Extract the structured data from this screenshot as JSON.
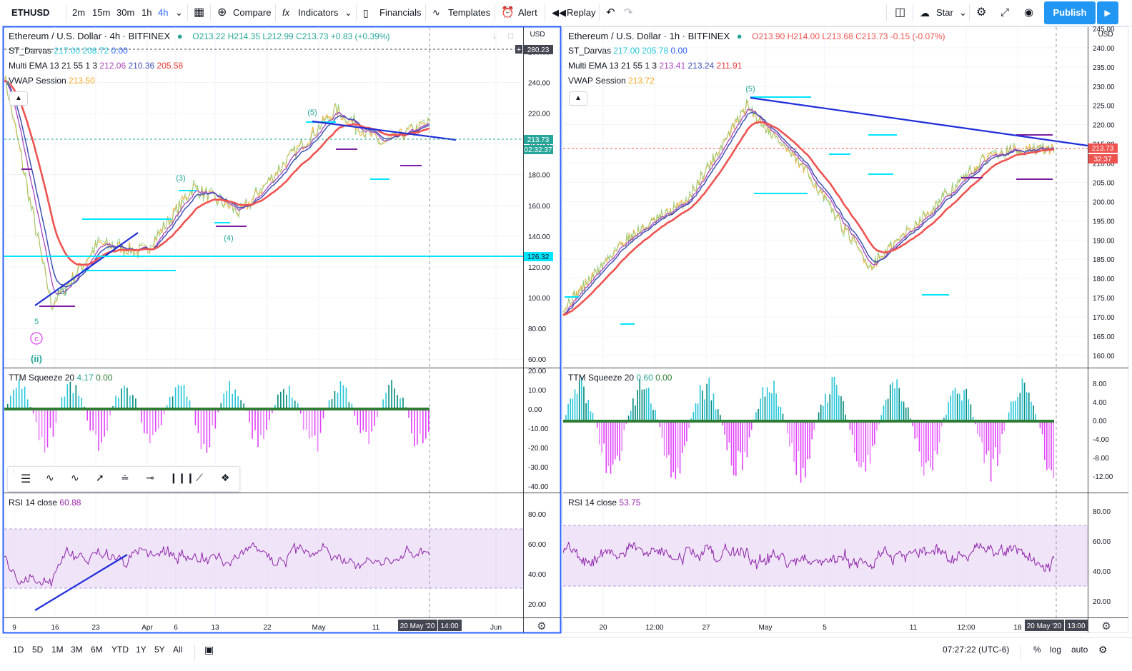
{
  "toolbar": {
    "symbol": "ETHUSD",
    "intervals": [
      "2m",
      "15m",
      "30m",
      "1h",
      "4h"
    ],
    "active_interval": "4h",
    "compare": "Compare",
    "indicators": "Indicators",
    "financials": "Financials",
    "templates": "Templates",
    "alert": "Alert",
    "replay": "Replay",
    "star": "Star",
    "publish": "Publish"
  },
  "bottombar": {
    "ranges": [
      "1D",
      "5D",
      "1M",
      "3M",
      "6M",
      "YTD",
      "1Y",
      "5Y",
      "All"
    ],
    "clock": "07:27:22 (UTC-6)",
    "pct": "%",
    "log": "log",
    "auto": "auto"
  },
  "left": {
    "title": "Ethereum / U.S. Dollar · 4h · BITFINEX",
    "ohlc": {
      "o": "O213.22",
      "h": "H214.35",
      "l": "L212.99",
      "c": "C213.73",
      "chg": "+0.83 (+0.39%)"
    },
    "darvas": {
      "name": "ST_Darvas",
      "v1": "217.00",
      "v2": "208.72",
      "v3": "0.00"
    },
    "ema": {
      "name": "Multi EMA 13 21 55 1 3",
      "v1": "212.06",
      "v2": "210.36",
      "v3": "205.58"
    },
    "vwap": {
      "name": "VWAP Session",
      "v": "213.50"
    },
    "ttm": {
      "name": "TTM Squeeze 20",
      "v1": "4.17",
      "v2": "0.00"
    },
    "rsi": {
      "name": "RSI 14 close",
      "v": "60.88"
    },
    "currency": "USD",
    "price_tag": "213.73",
    "countdown": "02:32:37",
    "tag_high": "280.23",
    "tag_low": "126.32",
    "date_tag": "20 May '20",
    "time_tag": "14:00",
    "price_ticks": [
      "260.00",
      "240.00",
      "220.00",
      "200.00",
      "180.00",
      "160.00",
      "140.00",
      "120.00",
      "100.00",
      "80.00",
      "60.00"
    ],
    "ttm_ticks": [
      "20.00",
      "10.00",
      "0.00",
      "-10.00",
      "-20.00",
      "-30.00",
      "-40.00"
    ],
    "rsi_ticks": [
      "80.00",
      "60.00",
      "40.00",
      "20.00"
    ],
    "x_ticks": [
      "9",
      "16",
      "23",
      "Apr",
      "6",
      "13",
      "22",
      "May",
      "11",
      "Jun"
    ],
    "waves": {
      "w5": "(5)",
      "w3": "(3)",
      "w4": "(4)",
      "w2": "(2)",
      "w5b": "5",
      "wc": "c",
      "wii": "(ii)",
      "w4a": "4"
    }
  },
  "right": {
    "title": "Ethereum / U.S. Dollar · 1h · BITFINEX",
    "ohlc": {
      "o": "O213.90",
      "h": "H214.00",
      "l": "L213.68",
      "c": "C213.73",
      "chg": "-0.15 (-0.07%)"
    },
    "darvas": {
      "name": "ST_Darvas",
      "v1": "217.00",
      "v2": "205.78",
      "v3": "0.00"
    },
    "ema": {
      "name": "Multi EMA 13 21 55 1 3",
      "v1": "213.41",
      "v2": "213.24",
      "v3": "211.91"
    },
    "vwap": {
      "name": "VWAP Session",
      "v": "213.72"
    },
    "ttm": {
      "name": "TTM Squeeze 20",
      "v1": "0.60",
      "v2": "0.00"
    },
    "rsi": {
      "name": "RSI 14 close",
      "v": "53.75"
    },
    "currency": "USD",
    "price_tag": "213.73",
    "countdown": "32:37",
    "date_tag": "20 May '20",
    "time_tag": "13:00",
    "price_ticks": [
      "245.00",
      "240.00",
      "235.00",
      "230.00",
      "225.00",
      "220.00",
      "215.00",
      "210.00",
      "205.00",
      "200.00",
      "195.00",
      "190.00",
      "185.00",
      "180.00",
      "175.00",
      "170.00",
      "165.00",
      "160.00"
    ],
    "ttm_ticks": [
      "8.00",
      "4.00",
      "0.00",
      "-4.00",
      "-8.00",
      "-12.00"
    ],
    "rsi_ticks": [
      "80.00",
      "60.00",
      "40.00",
      "20.00"
    ],
    "x_ticks": [
      "20",
      "12:00",
      "27",
      "May",
      "5",
      "11",
      "12:00",
      "18"
    ],
    "waves": {
      "w5": "(5)"
    }
  },
  "chart_data": [
    {
      "type": "line",
      "title": "Ethereum / U.S. Dollar · 4h · BITFINEX",
      "x": [
        "9",
        "16",
        "23",
        "Apr",
        "6",
        "13",
        "22",
        "May",
        "11",
        "20 May '20"
      ],
      "series": [
        {
          "name": "Ethereum / U.S. Dollar",
          "values": [
            245,
            95,
            135,
            130,
            172,
            155,
            190,
            222,
            200,
            213.73
          ]
        }
      ],
      "ylim": [
        55,
        275
      ],
      "legend": "top-left"
    },
    {
      "type": "line",
      "title": "Ethereum / U.S. Dollar · 1h · BITFINEX",
      "x": [
        "20",
        "12:00",
        "27",
        "May",
        "5",
        "11",
        "12:00",
        "18",
        "20 May '20"
      ],
      "series": [
        {
          "name": "Ethereum / U.S. Dollar",
          "values": [
            172,
            190,
            200,
            225,
            207,
            183,
            198,
            213,
            213.73
          ]
        }
      ],
      "ylim": [
        157,
        245
      ],
      "legend": "top-left"
    }
  ]
}
